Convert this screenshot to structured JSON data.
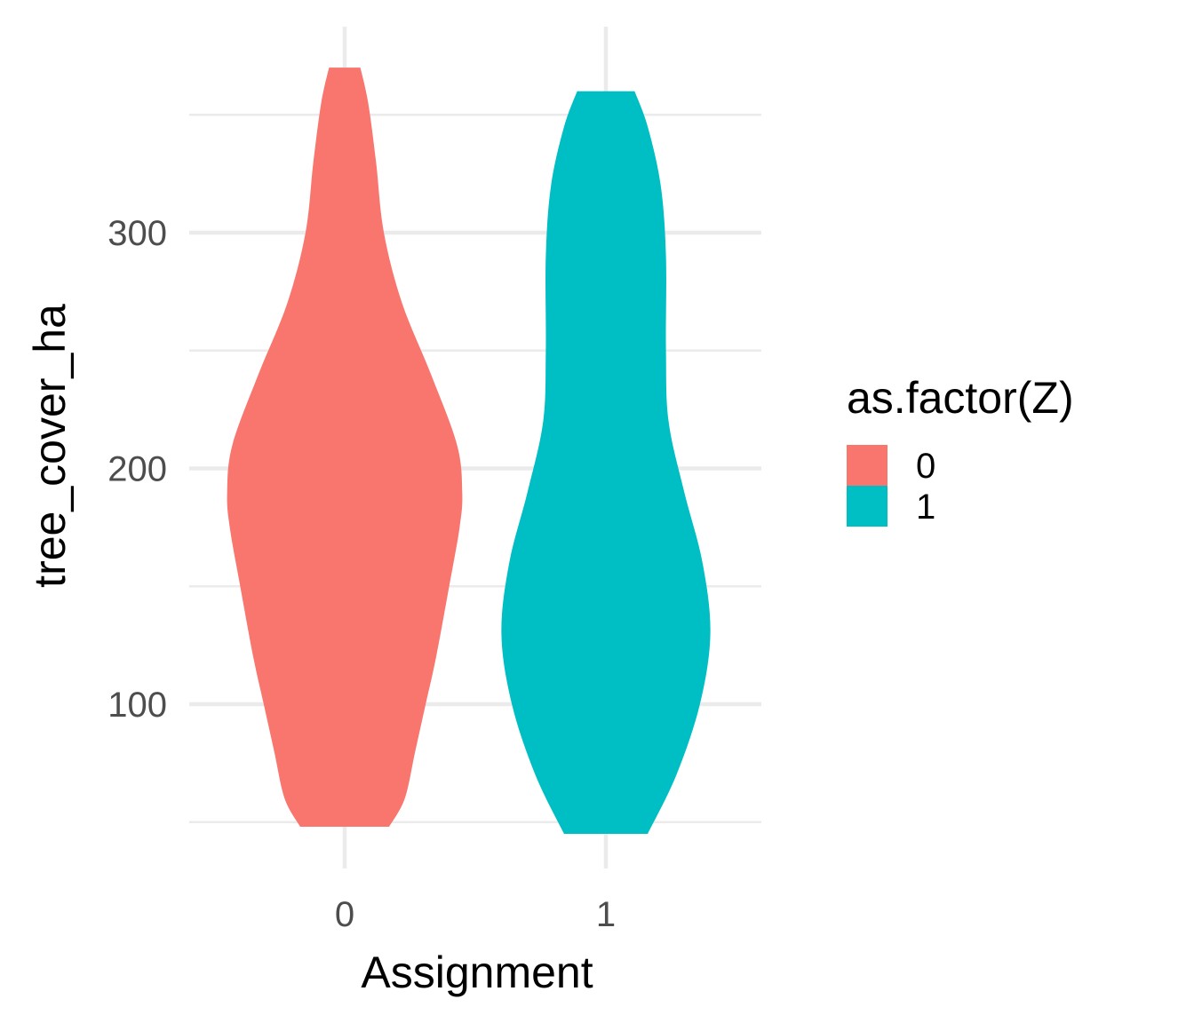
{
  "chart_data": {
    "type": "violin",
    "xlabel": "Assignment",
    "ylabel": "tree_cover_ha",
    "categories": [
      "0",
      "1"
    ],
    "y_ticks": [
      100,
      200,
      300
    ],
    "ylim": [
      35,
      385
    ],
    "grid": true,
    "legend": {
      "title": "as.factor(Z)",
      "position": "right",
      "entries": [
        {
          "label": "0",
          "color": "#F8766D"
        },
        {
          "label": "1",
          "color": "#00BFC4"
        }
      ]
    },
    "series": [
      {
        "group": "0",
        "color": "#F8766D",
        "y_min": 48,
        "y_max": 370,
        "density_profile": [
          {
            "y": 48,
            "halfwidth": 0.17
          },
          {
            "y": 60,
            "halfwidth": 0.23
          },
          {
            "y": 80,
            "halfwidth": 0.27
          },
          {
            "y": 100,
            "halfwidth": 0.31
          },
          {
            "y": 120,
            "halfwidth": 0.35
          },
          {
            "y": 150,
            "halfwidth": 0.4
          },
          {
            "y": 175,
            "halfwidth": 0.44
          },
          {
            "y": 190,
            "halfwidth": 0.45
          },
          {
            "y": 210,
            "halfwidth": 0.43
          },
          {
            "y": 240,
            "halfwidth": 0.33
          },
          {
            "y": 270,
            "halfwidth": 0.22
          },
          {
            "y": 300,
            "halfwidth": 0.15
          },
          {
            "y": 330,
            "halfwidth": 0.12
          },
          {
            "y": 355,
            "halfwidth": 0.09
          },
          {
            "y": 370,
            "halfwidth": 0.06
          }
        ]
      },
      {
        "group": "1",
        "color": "#00BFC4",
        "y_min": 45,
        "y_max": 360,
        "density_profile": [
          {
            "y": 45,
            "halfwidth": 0.16
          },
          {
            "y": 70,
            "halfwidth": 0.27
          },
          {
            "y": 100,
            "halfwidth": 0.36
          },
          {
            "y": 130,
            "halfwidth": 0.4
          },
          {
            "y": 160,
            "halfwidth": 0.37
          },
          {
            "y": 190,
            "halfwidth": 0.3
          },
          {
            "y": 220,
            "halfwidth": 0.24
          },
          {
            "y": 250,
            "halfwidth": 0.23
          },
          {
            "y": 290,
            "halfwidth": 0.23
          },
          {
            "y": 320,
            "halfwidth": 0.21
          },
          {
            "y": 345,
            "halfwidth": 0.16
          },
          {
            "y": 360,
            "halfwidth": 0.11
          }
        ]
      }
    ]
  }
}
